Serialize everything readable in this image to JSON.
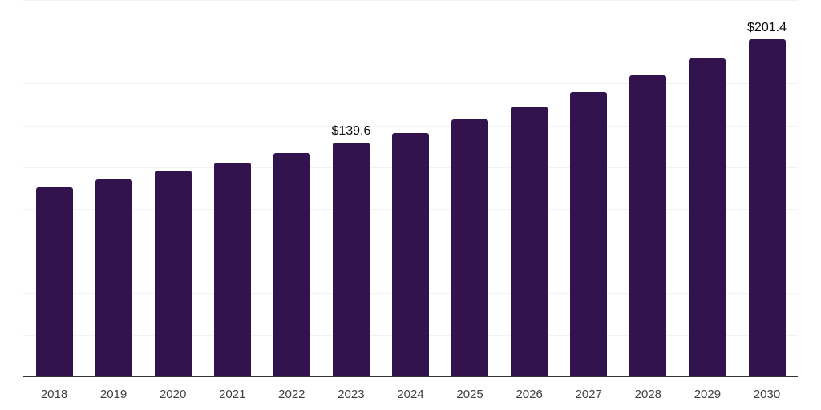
{
  "chart_data": {
    "type": "bar",
    "title": "",
    "xlabel": "",
    "ylabel": "",
    "categories": [
      "2018",
      "2019",
      "2020",
      "2021",
      "2022",
      "2023",
      "2024",
      "2025",
      "2026",
      "2027",
      "2028",
      "2029",
      "2030"
    ],
    "values": [
      112.8,
      117.6,
      122.9,
      127.7,
      133.6,
      139.6,
      145.5,
      153.7,
      161.5,
      169.9,
      179.8,
      189.9,
      201.4
    ],
    "data_labels": [
      {
        "category": "2023",
        "text": "$139.6"
      },
      {
        "category": "2030",
        "text": "$201.4"
      }
    ],
    "ylim": [
      0,
      225
    ],
    "grid_step": 25,
    "grid": true,
    "legend": false,
    "y_tick_labels_shown": false,
    "colors": {
      "bar": "#33134D",
      "axis_line": "#333333",
      "gridline": "#F2F2F2",
      "tick_label": "#3F3F3F",
      "data_label": "#0A0A0A",
      "background": "#FFFFFF"
    }
  }
}
